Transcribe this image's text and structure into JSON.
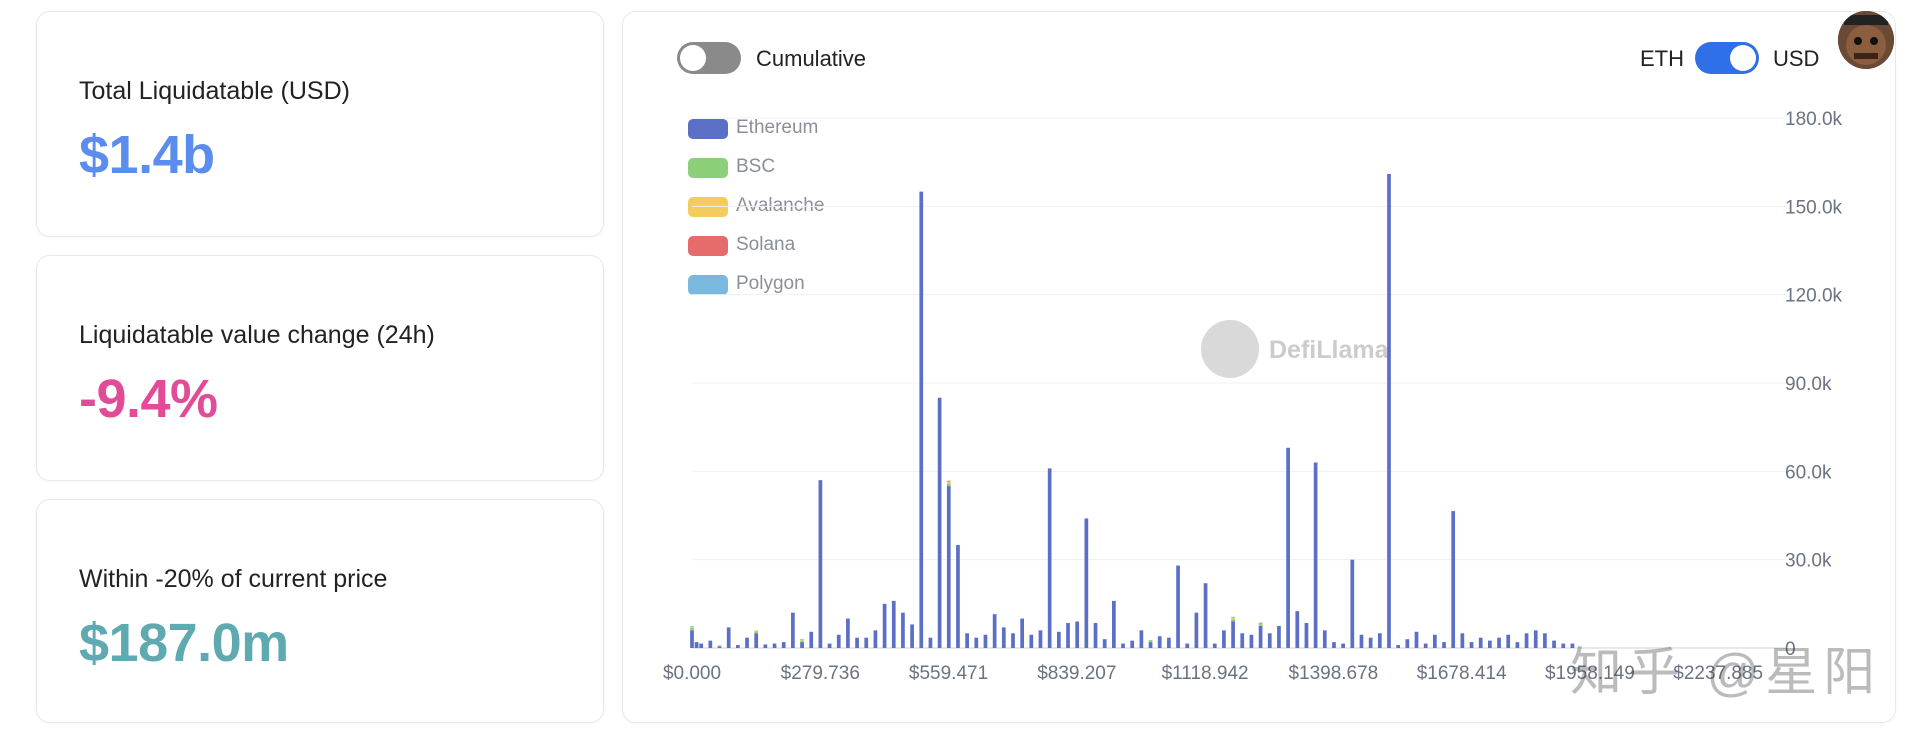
{
  "cards": [
    {
      "label": "Total Liquidatable (USD)",
      "value": "$1.4b",
      "color": "#5b8def"
    },
    {
      "label": "Liquidatable value change (24h)",
      "value": "-9.4%",
      "color": "#e24b97"
    },
    {
      "label": "Within -20% of current price",
      "value": "$187.0m",
      "color": "#5fa9b1"
    }
  ],
  "controls": {
    "cumulative_label": "Cumulative",
    "cumulative_on": false,
    "eth_label": "ETH",
    "usd_label": "USD",
    "currency_on": true,
    "off_color": "#8a8a8a",
    "on_color": "#2f6fe8"
  },
  "watermark": {
    "text": "DefiLlama"
  },
  "zh_watermark": "知乎 @星阳",
  "avatar": {
    "icon": "pirate-avatar-icon"
  },
  "chart_data": {
    "type": "bar",
    "stacked": true,
    "legend": [
      "Ethereum",
      "BSC",
      "Avalanche",
      "Solana",
      "Polygon"
    ],
    "legend_position": "top-left",
    "colors": {
      "Ethereum": "#5b6fc6",
      "BSC": "#8ccf7a",
      "Avalanche": "#f2cd5e",
      "Solana": "#e66b6b",
      "Polygon": "#7ab8dd"
    },
    "y_axis": {
      "position": "right",
      "ylim": [
        0,
        180000
      ],
      "ticks": [
        "0",
        "30.0k",
        "60.0k",
        "90.0k",
        "120.0k",
        "150.0k",
        "180.0k"
      ],
      "grid": true
    },
    "x_tick_labels": [
      "$0.000",
      "$279.736",
      "$559.471",
      "$839.207",
      "$1118.942",
      "$1398.678",
      "$1678.414",
      "$1958.149",
      "$2237.885"
    ],
    "x_range": [
      0,
      2340
    ],
    "bar_width_data": 18,
    "series": [
      {
        "name": "Ethereum",
        "values": [
          [
            0,
            6000
          ],
          [
            10,
            2000
          ],
          [
            20,
            1500
          ],
          [
            40,
            2500
          ],
          [
            60,
            500
          ],
          [
            80,
            7000
          ],
          [
            100,
            1000
          ],
          [
            120,
            3500
          ],
          [
            140,
            5000
          ],
          [
            160,
            1200
          ],
          [
            180,
            1500
          ],
          [
            200,
            2000
          ],
          [
            220,
            12000
          ],
          [
            240,
            2000
          ],
          [
            260,
            5500
          ],
          [
            280,
            57000
          ],
          [
            300,
            1500
          ],
          [
            320,
            4500
          ],
          [
            340,
            10000
          ],
          [
            360,
            3500
          ],
          [
            380,
            3500
          ],
          [
            400,
            6000
          ],
          [
            420,
            15000
          ],
          [
            440,
            16000
          ],
          [
            460,
            12000
          ],
          [
            480,
            8000
          ],
          [
            500,
            155000
          ],
          [
            520,
            3500
          ],
          [
            540,
            85000
          ],
          [
            560,
            55000
          ],
          [
            580,
            35000
          ],
          [
            600,
            5000
          ],
          [
            620,
            3500
          ],
          [
            640,
            4500
          ],
          [
            660,
            11500
          ],
          [
            680,
            7000
          ],
          [
            700,
            5000
          ],
          [
            720,
            10000
          ],
          [
            740,
            4500
          ],
          [
            760,
            6000
          ],
          [
            780,
            61000
          ],
          [
            800,
            5500
          ],
          [
            820,
            8500
          ],
          [
            840,
            9000
          ],
          [
            860,
            44000
          ],
          [
            880,
            8500
          ],
          [
            900,
            3000
          ],
          [
            920,
            16000
          ],
          [
            940,
            1500
          ],
          [
            960,
            2500
          ],
          [
            980,
            6000
          ],
          [
            1000,
            2000
          ],
          [
            1020,
            4000
          ],
          [
            1040,
            3500
          ],
          [
            1060,
            28000
          ],
          [
            1080,
            1500
          ],
          [
            1100,
            12000
          ],
          [
            1120,
            22000
          ],
          [
            1140,
            1500
          ],
          [
            1160,
            6000
          ],
          [
            1180,
            9000
          ],
          [
            1200,
            5000
          ],
          [
            1220,
            4500
          ],
          [
            1240,
            7500
          ],
          [
            1260,
            5000
          ],
          [
            1280,
            7500
          ],
          [
            1300,
            68000
          ],
          [
            1320,
            12500
          ],
          [
            1340,
            8500
          ],
          [
            1360,
            63000
          ],
          [
            1380,
            6000
          ],
          [
            1400,
            2000
          ],
          [
            1420,
            1500
          ],
          [
            1440,
            30000
          ],
          [
            1460,
            4500
          ],
          [
            1480,
            3500
          ],
          [
            1500,
            5000
          ],
          [
            1520,
            161000
          ],
          [
            1540,
            1000
          ],
          [
            1560,
            3000
          ],
          [
            1580,
            5500
          ],
          [
            1600,
            1500
          ],
          [
            1620,
            4500
          ],
          [
            1640,
            2000
          ],
          [
            1660,
            46500
          ],
          [
            1680,
            5000
          ],
          [
            1700,
            2000
          ],
          [
            1720,
            3500
          ],
          [
            1740,
            2500
          ],
          [
            1760,
            3500
          ],
          [
            1780,
            4500
          ],
          [
            1800,
            2000
          ],
          [
            1820,
            5000
          ],
          [
            1840,
            6000
          ],
          [
            1860,
            5000
          ],
          [
            1880,
            2500
          ],
          [
            1900,
            1500
          ],
          [
            1920,
            1500
          ]
        ]
      },
      {
        "name": "BSC",
        "values": [
          [
            0,
            800
          ],
          [
            60,
            400
          ],
          [
            140,
            600
          ],
          [
            240,
            500
          ],
          [
            560,
            900
          ],
          [
            1000,
            700
          ],
          [
            1180,
            800
          ],
          [
            1240,
            600
          ]
        ]
      },
      {
        "name": "Avalanche",
        "values": [
          [
            0,
            300
          ],
          [
            140,
            400
          ],
          [
            240,
            300
          ],
          [
            560,
            600
          ],
          [
            1180,
            500
          ],
          [
            1240,
            300
          ]
        ]
      },
      {
        "name": "Solana",
        "values": [
          [
            560,
            300
          ],
          [
            1240,
            200
          ]
        ]
      },
      {
        "name": "Polygon",
        "values": [
          [
            0,
            300
          ],
          [
            240,
            200
          ],
          [
            1180,
            300
          ]
        ]
      }
    ]
  }
}
